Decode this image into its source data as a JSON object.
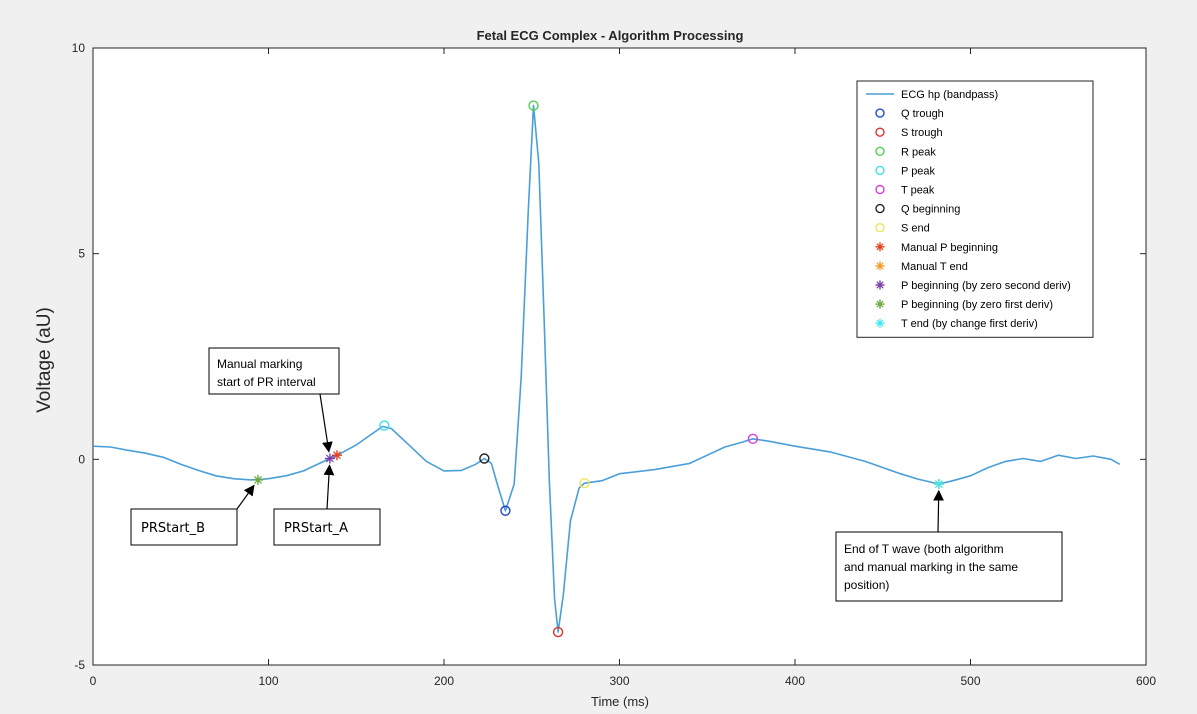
{
  "chart_data": {
    "type": "line",
    "title": "Fetal ECG Complex - Algorithm Processing",
    "xlabel": "Time (ms)",
    "ylabel": "Voltage (aU)",
    "xlim": [
      0,
      600
    ],
    "ylim": [
      -5,
      10
    ],
    "xticks": [
      "0",
      "100",
      "200",
      "300",
      "400",
      "500",
      "600"
    ],
    "yticks": [
      "-5",
      "0",
      "5",
      "10"
    ],
    "grid": false,
    "legend_position": "top-right",
    "colors": {
      "ecg_line": "#4a9fd8",
      "q_trough": "#2148c9",
      "s_trough": "#e0322a",
      "r_peak": "#4fd34f",
      "p_peak": "#3ee0e6",
      "t_peak": "#d83fd8",
      "q_beginning": "#222222",
      "s_end": "#f0e35a",
      "manual_p_beginning": "#e8401c",
      "manual_t_end": "#f59a22",
      "p_begin_second_deriv": "#7a3aa8",
      "p_begin_first_deriv": "#6aa63a",
      "t_end_first_deriv": "#3ee8f0"
    },
    "series": [
      {
        "name": "ECG hp (bandpass)",
        "style": "line",
        "color_key": "ecg_line",
        "points": [
          [
            0,
            0.32
          ],
          [
            10,
            0.3
          ],
          [
            20,
            0.22
          ],
          [
            30,
            0.15
          ],
          [
            40,
            0.05
          ],
          [
            50,
            -0.12
          ],
          [
            60,
            -0.27
          ],
          [
            70,
            -0.4
          ],
          [
            80,
            -0.47
          ],
          [
            90,
            -0.5
          ],
          [
            95,
            -0.49
          ],
          [
            100,
            -0.47
          ],
          [
            110,
            -0.4
          ],
          [
            120,
            -0.28
          ],
          [
            130,
            -0.08
          ],
          [
            135,
            0.02
          ],
          [
            140,
            0.12
          ],
          [
            150,
            0.35
          ],
          [
            160,
            0.65
          ],
          [
            165,
            0.8
          ],
          [
            170,
            0.75
          ],
          [
            180,
            0.35
          ],
          [
            190,
            -0.05
          ],
          [
            200,
            -0.28
          ],
          [
            210,
            -0.27
          ],
          [
            218,
            -0.12
          ],
          [
            223,
            0.02
          ],
          [
            227,
            -0.1
          ],
          [
            230,
            -0.55
          ],
          [
            235,
            -1.25
          ],
          [
            240,
            -0.6
          ],
          [
            244,
            2.0
          ],
          [
            248,
            6.0
          ],
          [
            251,
            8.6
          ],
          [
            254,
            7.2
          ],
          [
            257,
            3.5
          ],
          [
            260,
            -0.5
          ],
          [
            263,
            -3.4
          ],
          [
            265,
            -4.2
          ],
          [
            268,
            -3.3
          ],
          [
            272,
            -1.5
          ],
          [
            277,
            -0.7
          ],
          [
            280,
            -0.58
          ],
          [
            290,
            -0.52
          ],
          [
            300,
            -0.35
          ],
          [
            320,
            -0.25
          ],
          [
            340,
            -0.1
          ],
          [
            350,
            0.1
          ],
          [
            360,
            0.3
          ],
          [
            370,
            0.42
          ],
          [
            376,
            0.5
          ],
          [
            385,
            0.44
          ],
          [
            400,
            0.32
          ],
          [
            420,
            0.18
          ],
          [
            440,
            -0.05
          ],
          [
            460,
            -0.35
          ],
          [
            470,
            -0.48
          ],
          [
            482,
            -0.6
          ],
          [
            490,
            -0.52
          ],
          [
            500,
            -0.4
          ],
          [
            510,
            -0.2
          ],
          [
            520,
            -0.05
          ],
          [
            530,
            0.02
          ],
          [
            540,
            -0.05
          ],
          [
            550,
            0.1
          ],
          [
            560,
            0.02
          ],
          [
            570,
            0.08
          ],
          [
            580,
            0.0
          ],
          [
            585,
            -0.12
          ]
        ]
      },
      {
        "name": "Q trough",
        "style": "circle",
        "color_key": "q_trough",
        "points": [
          [
            235,
            -1.25
          ]
        ]
      },
      {
        "name": "S trough",
        "style": "circle",
        "color_key": "s_trough",
        "points": [
          [
            265,
            -4.2
          ]
        ]
      },
      {
        "name": "R peak",
        "style": "circle",
        "color_key": "r_peak",
        "points": [
          [
            251,
            8.6
          ]
        ]
      },
      {
        "name": "P peak",
        "style": "circle",
        "color_key": "p_peak",
        "points": [
          [
            166,
            0.82
          ]
        ]
      },
      {
        "name": "T peak",
        "style": "circle",
        "color_key": "t_peak",
        "points": [
          [
            376,
            0.5
          ]
        ]
      },
      {
        "name": "Q beginning",
        "style": "circle",
        "color_key": "q_beginning",
        "points": [
          [
            223,
            0.02
          ]
        ]
      },
      {
        "name": "S end",
        "style": "circle",
        "color_key": "s_end",
        "points": [
          [
            280,
            -0.58
          ]
        ]
      },
      {
        "name": "Manual P beginning",
        "style": "star",
        "color_key": "manual_p_beginning",
        "points": [
          [
            139,
            0.1
          ]
        ]
      },
      {
        "name": "Manual T end",
        "style": "star",
        "color_key": "manual_t_end",
        "points": [
          [
            482,
            -0.6
          ]
        ]
      },
      {
        "name": "P beginning (by zero second deriv)",
        "style": "star",
        "color_key": "p_begin_second_deriv",
        "points": [
          [
            135,
            0.02
          ]
        ]
      },
      {
        "name": "P beginning (by zero first deriv)",
        "style": "star",
        "color_key": "p_begin_first_deriv",
        "points": [
          [
            94,
            -0.5
          ]
        ]
      },
      {
        "name": "T end (by change first deriv)",
        "style": "star",
        "color_key": "t_end_first_deriv",
        "points": [
          [
            482,
            -0.6
          ]
        ]
      }
    ],
    "annotations": [
      {
        "name": "manual-marking-callout",
        "lines": [
          "Manual marking",
          "start of PR interval"
        ],
        "box": "above",
        "arrow_to": [
          135,
          0.02
        ]
      },
      {
        "name": "prstart-b-label",
        "lines": [
          "PRStart_B"
        ],
        "box": "below",
        "arrow_to": [
          94,
          -0.5
        ]
      },
      {
        "name": "prstart-a-label",
        "lines": [
          "PRStart_A"
        ],
        "box": "below",
        "arrow_to": [
          135,
          0.02
        ]
      },
      {
        "name": "end-of-t-wave-callout",
        "lines": [
          "End of T wave (both algorithm",
          "and manual marking in the same",
          "position)"
        ],
        "box": "below",
        "arrow_to": [
          482,
          -0.6
        ]
      }
    ]
  }
}
